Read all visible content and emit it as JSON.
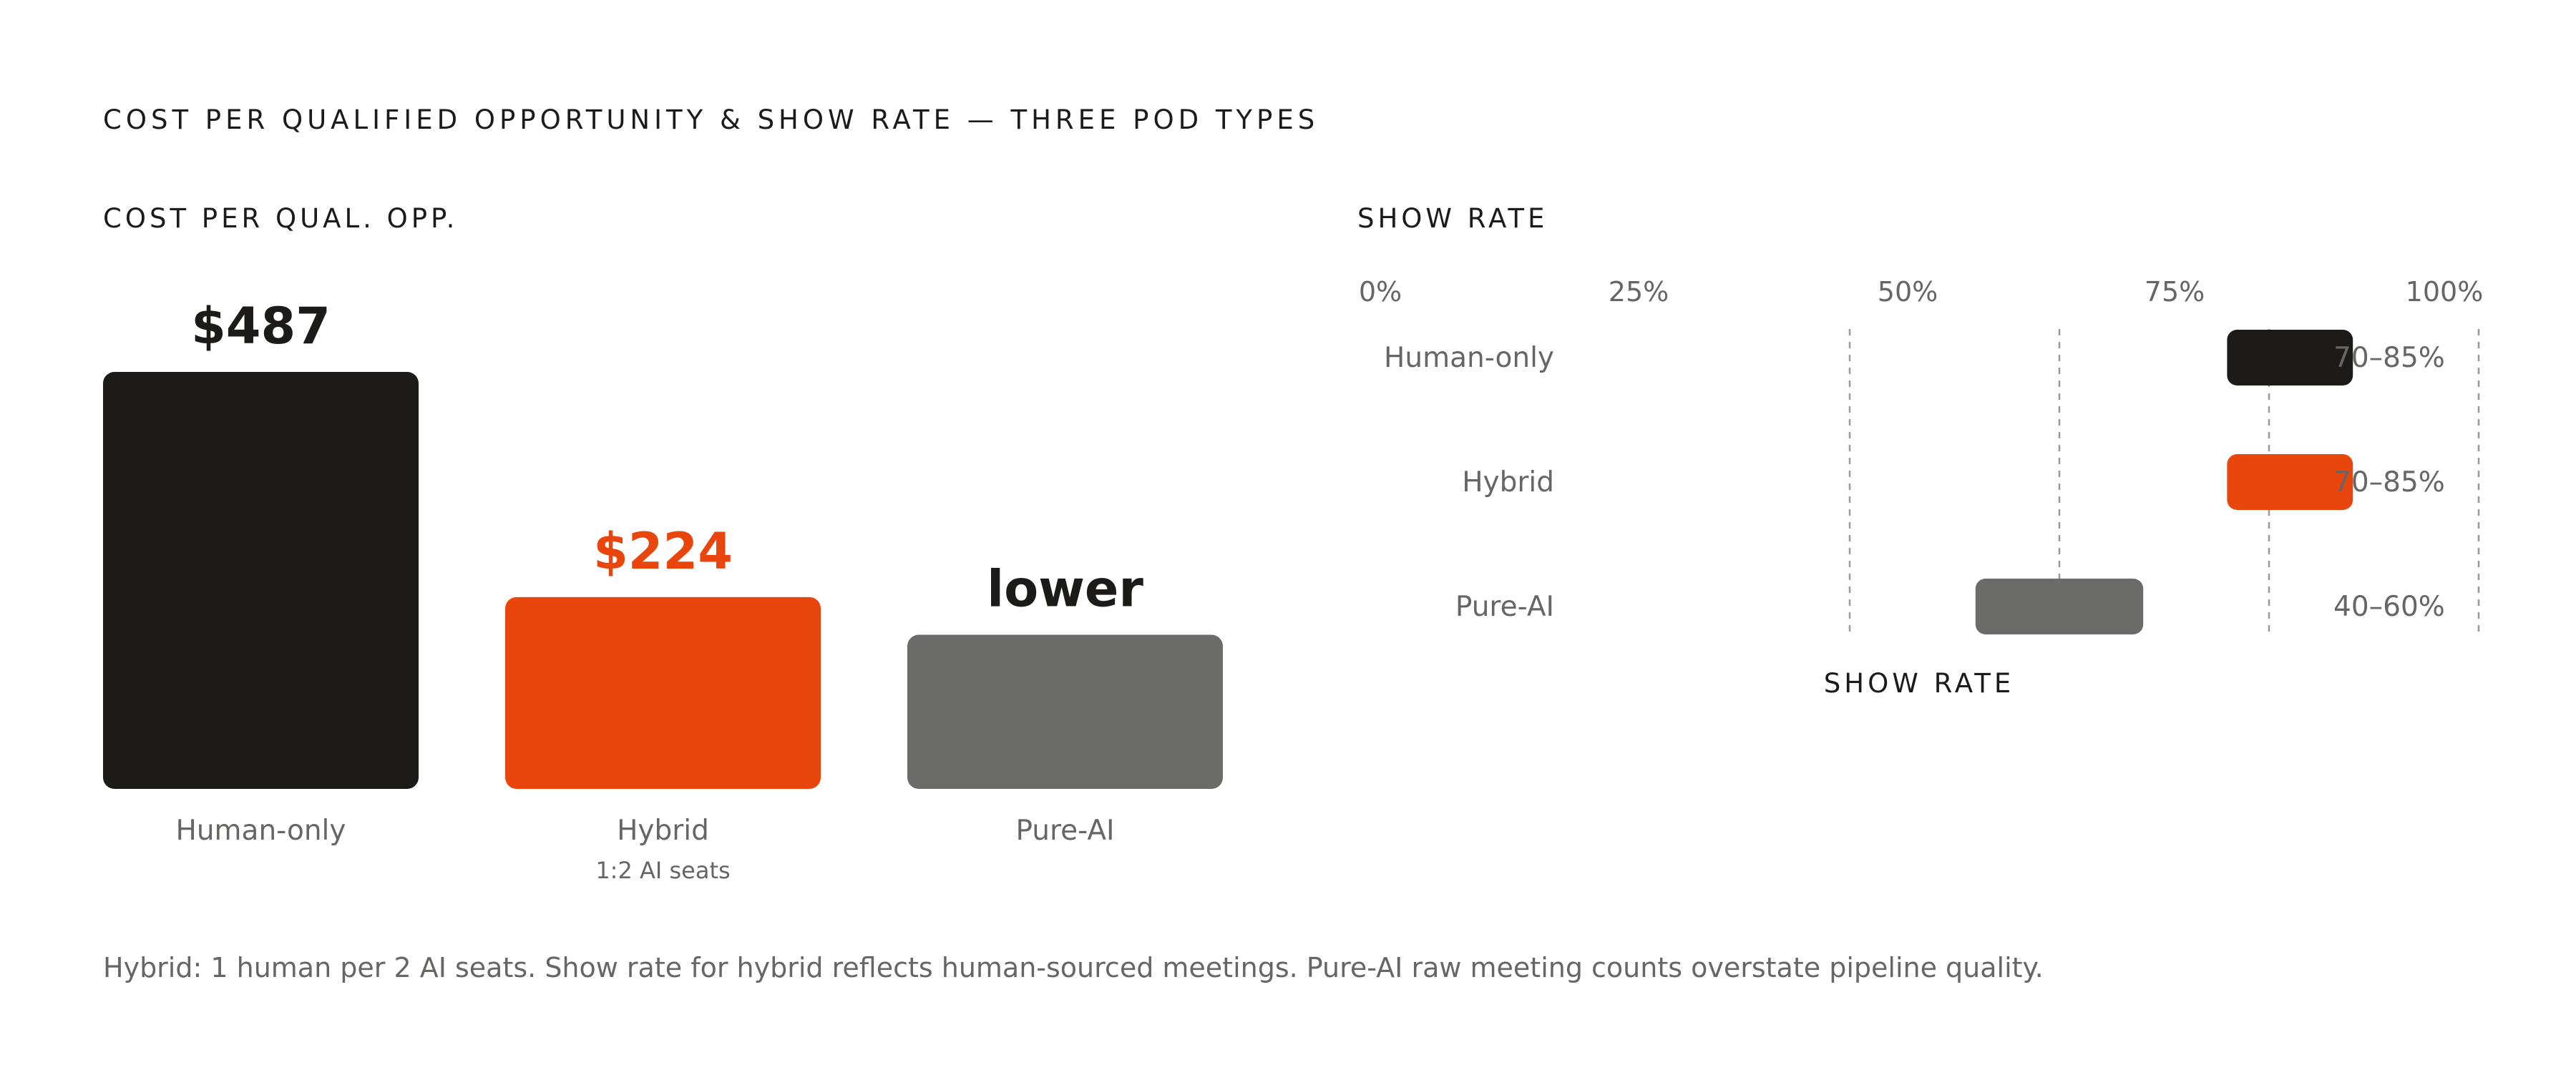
{
  "title": "COST PER QUALIFIED OPPORTUNITY & SHOW RATE — THREE POD TYPES",
  "colors": {
    "human": "#1c1b1a",
    "hybrid": "#e8460d",
    "pure_ai": "#6b6b69",
    "muted_text": "#666664",
    "grid": "#9a9a98"
  },
  "chart_data": [
    {
      "type": "bar",
      "title": "COST PER QUAL. OPP.",
      "categories": [
        "Human-only",
        "Hybrid",
        "Pure-AI"
      ],
      "category_notes": [
        "",
        "1:2 AI seats",
        ""
      ],
      "values": [
        487,
        224,
        180
      ],
      "value_labels": [
        "$487",
        "$224",
        "lower"
      ],
      "ylim": [
        0,
        487
      ],
      "grid": false,
      "colors": [
        "#1c1b1a",
        "#e8460d",
        "#6b6b69"
      ]
    },
    {
      "type": "bar",
      "orientation": "horizontal-range",
      "title": "SHOW RATE",
      "xlabel": "SHOW RATE",
      "x_ticks": [
        "0%",
        "25%",
        "50%",
        "75%",
        "100%"
      ],
      "xlim": [
        0,
        100
      ],
      "categories": [
        "Human-only",
        "Hybrid",
        "Pure-AI"
      ],
      "ranges": [
        [
          70,
          85
        ],
        [
          70,
          85
        ],
        [
          40,
          60
        ]
      ],
      "range_labels": [
        "70–85%",
        "70–85%",
        "40–60%"
      ],
      "colors": [
        "#1c1b1a",
        "#e8460d",
        "#6b6b69"
      ],
      "grid": true
    }
  ],
  "footnote": "Hybrid: 1 human per 2 AI seats. Show rate for hybrid reflects human-sourced meetings. Pure-AI raw meeting counts overstate pipeline quality."
}
